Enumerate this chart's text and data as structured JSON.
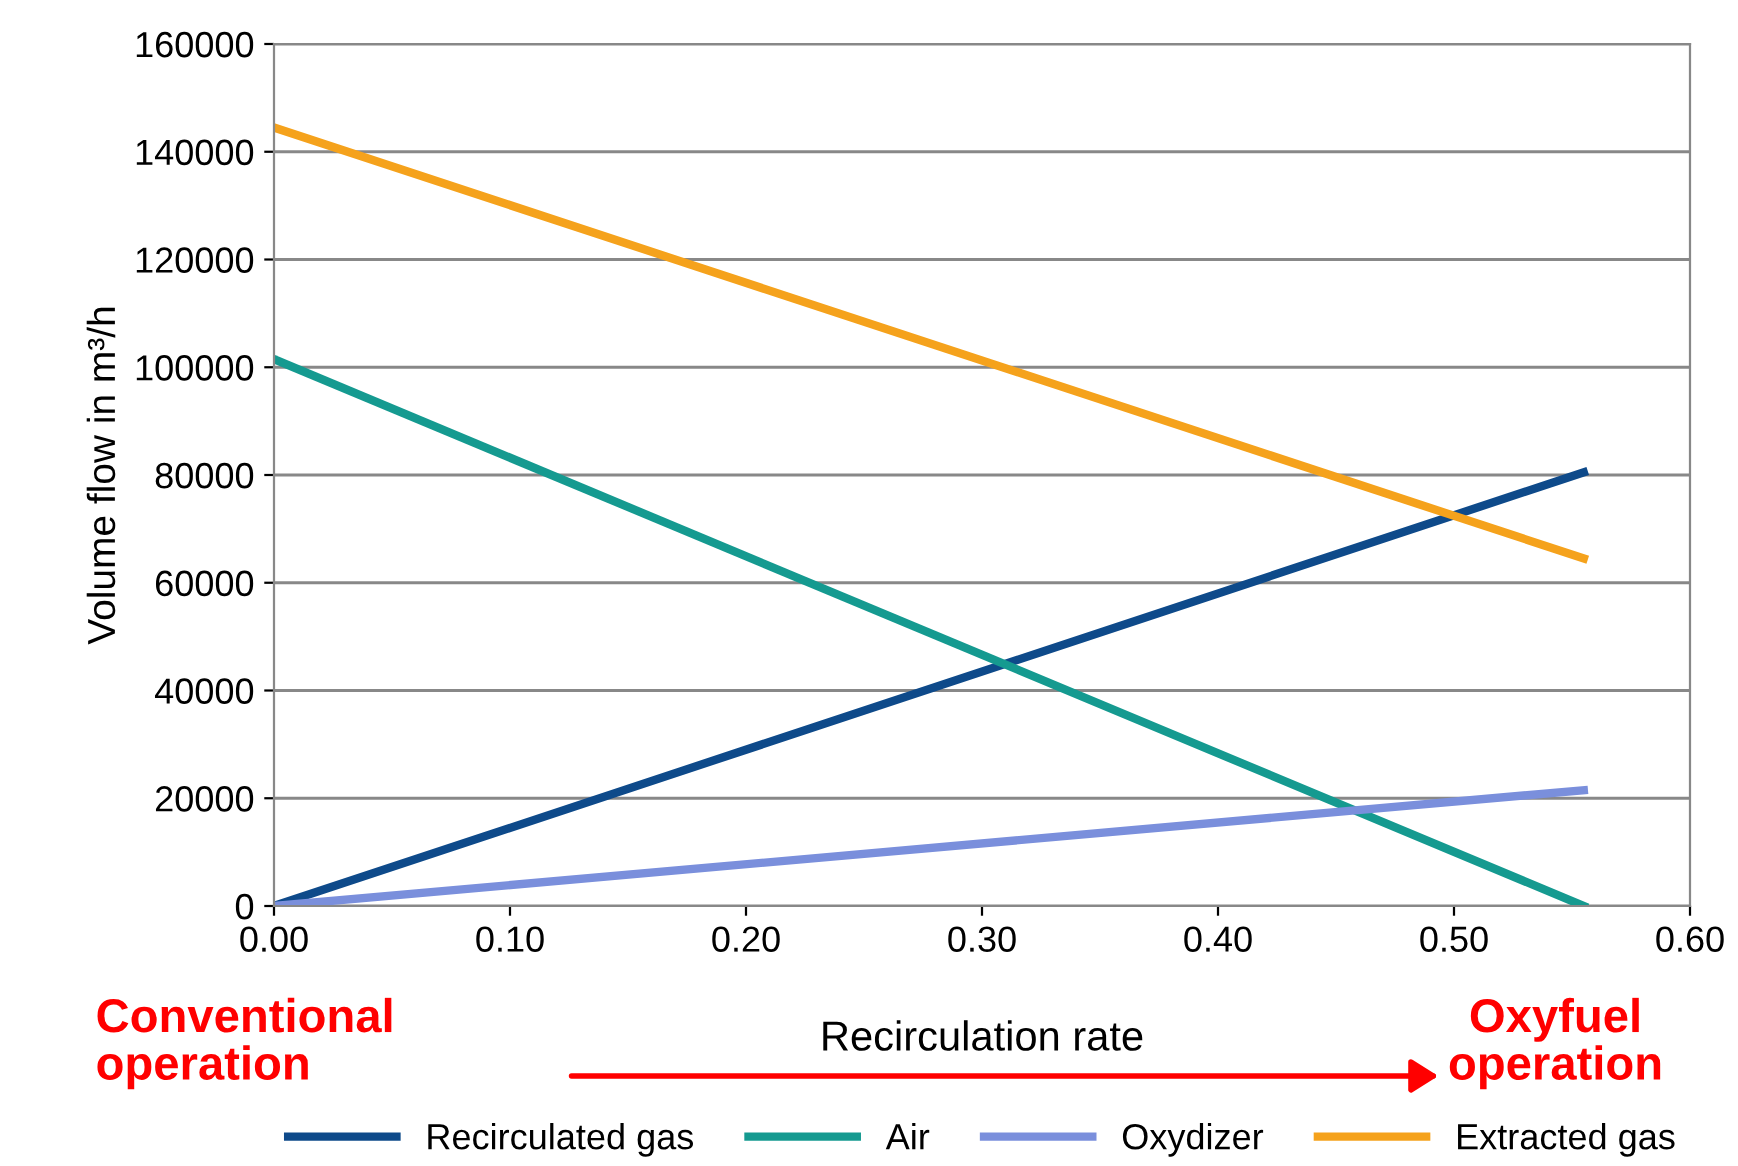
{
  "chart_data": {
    "type": "line",
    "xlabel": "Recirculation rate",
    "ylabel": "Volume flow in m³/h",
    "x": [
      0.0,
      0.555
    ],
    "series": [
      {
        "name": "Recirculated gas",
        "color": "#0e4a8a",
        "values": [
          0,
          80500
        ]
      },
      {
        "name": "Air",
        "color": "#159a90",
        "values": [
          101500,
          0
        ]
      },
      {
        "name": "Oxydizer",
        "color": "#7a8fdc",
        "values": [
          0,
          21500
        ]
      },
      {
        "name": "Extracted gas",
        "color": "#f5a21c",
        "values": [
          144500,
          64500
        ]
      }
    ],
    "xlim": [
      0.0,
      0.6
    ],
    "xticks": [
      {
        "value": 0,
        "label": "0.00"
      },
      {
        "value": 0.1,
        "label": "0.10"
      },
      {
        "value": 0.2,
        "label": "0.20"
      },
      {
        "value": 0.3,
        "label": "0.30"
      },
      {
        "value": 0.4,
        "label": "0.40"
      },
      {
        "value": 0.5,
        "label": "0.50"
      },
      {
        "value": 0.6,
        "label": "0.60"
      }
    ],
    "ylim": [
      0,
      160000
    ],
    "yticks": [
      0,
      20000,
      40000,
      60000,
      80000,
      100000,
      120000,
      140000,
      160000
    ],
    "grid": "y",
    "legend": "bottom",
    "marker": "none",
    "line_style": "solid",
    "annotations": [
      "Conventional operation",
      "Oxyfuel operation"
    ]
  }
}
